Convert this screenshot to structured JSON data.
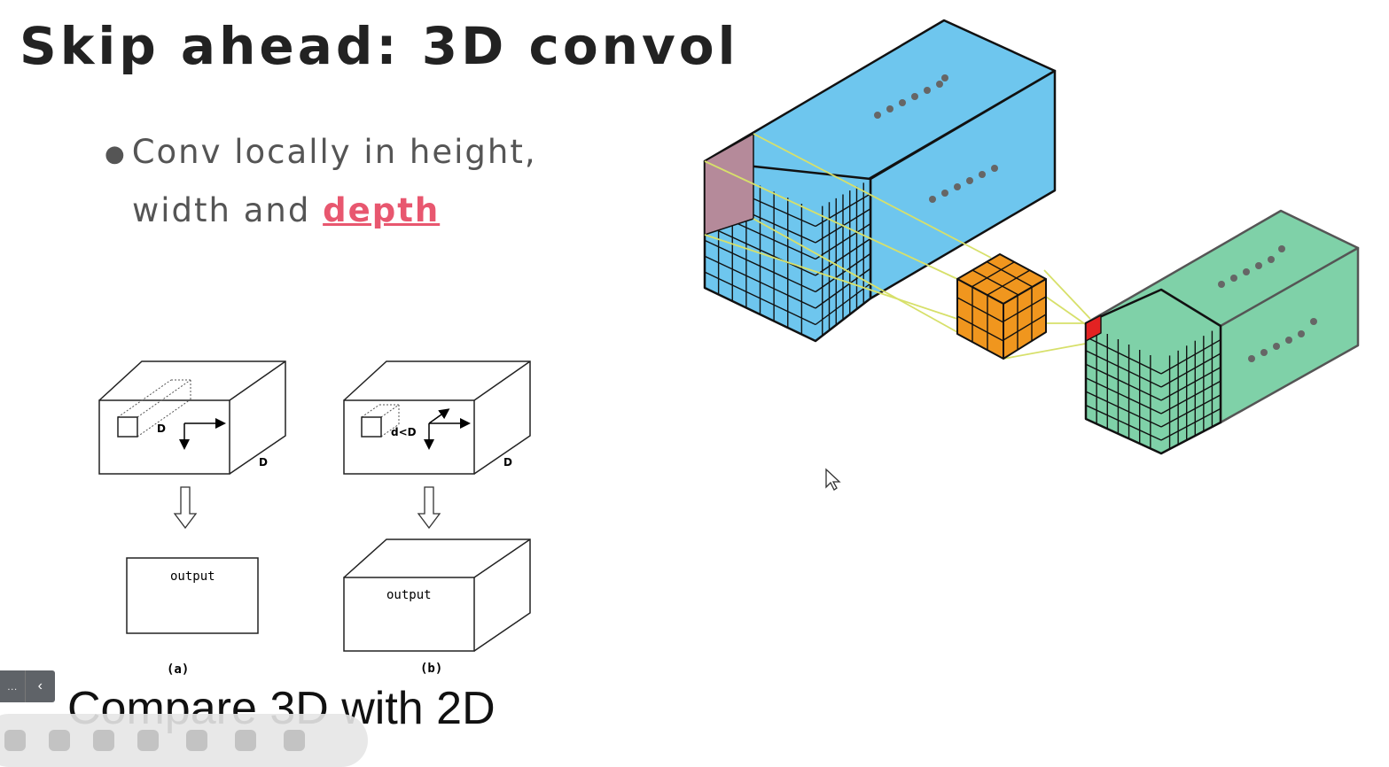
{
  "slide": {
    "title": "Skip ahead: 3D convol",
    "bullet_line1": "Conv locally in height,",
    "bullet_line2_prefix": "width and ",
    "bullet_highlight": "depth",
    "bullet_symbol": "●",
    "caption": "Compare 3D with 2D"
  },
  "left_figure": {
    "panel_a": {
      "depth_label": "D",
      "side_label": "D",
      "output_label": "output",
      "panel_label": "(a)"
    },
    "panel_b": {
      "depth_label": "d<D",
      "side_label": "D",
      "output_label": "output",
      "panel_label": "(b)"
    }
  },
  "right_figure": {
    "input_color": "#6ec6ee",
    "kernel_color": "#f0961e",
    "output_color": "#7fd1a8",
    "receptive_color": "#b58a9a",
    "output_cell_color": "#e32222",
    "arrow_color": "#d7e06a",
    "ellipsis": "......"
  },
  "player": {
    "page_indicator": "…",
    "prev_icon": "‹",
    "toolbar_icons": [
      "play-icon",
      "pen-icon",
      "screenshot-icon",
      "video-icon",
      "notes-icon",
      "more-icon",
      "back-icon"
    ]
  },
  "colors": {
    "title": "#222222",
    "highlight": "#e8576f",
    "text": "#555555"
  }
}
